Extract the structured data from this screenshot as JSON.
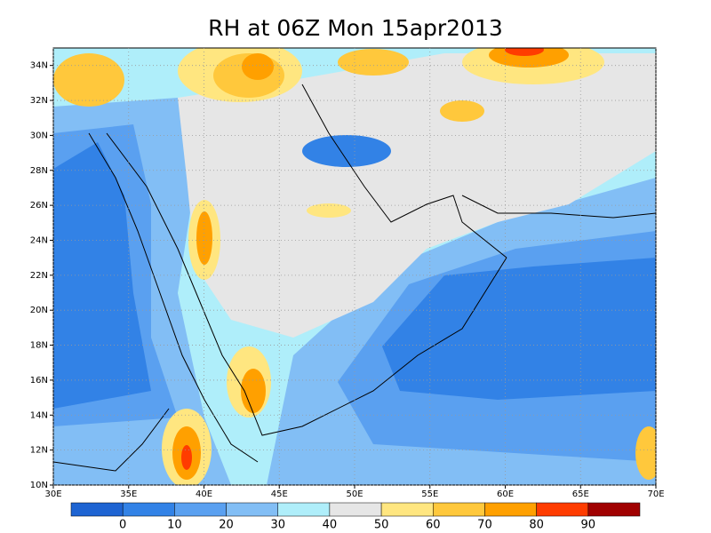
{
  "title": "RH at 06Z Mon 15apr2013",
  "map": {
    "xlim": [
      30,
      70
    ],
    "ylim": [
      10,
      35
    ],
    "xticks": [
      {
        "value": 30,
        "label": "30E"
      },
      {
        "value": 35,
        "label": "35E"
      },
      {
        "value": 40,
        "label": "40E"
      },
      {
        "value": 45,
        "label": "45E"
      },
      {
        "value": 50,
        "label": "50E"
      },
      {
        "value": 55,
        "label": "55E"
      },
      {
        "value": 60,
        "label": "60E"
      },
      {
        "value": 65,
        "label": "65E"
      },
      {
        "value": 70,
        "label": "70E"
      }
    ],
    "yticks": [
      {
        "value": 10,
        "label": "10N"
      },
      {
        "value": 12,
        "label": "12N"
      },
      {
        "value": 14,
        "label": "14N"
      },
      {
        "value": 16,
        "label": "16N"
      },
      {
        "value": 18,
        "label": "18N"
      },
      {
        "value": 20,
        "label": "20N"
      },
      {
        "value": 22,
        "label": "22N"
      },
      {
        "value": 24,
        "label": "24N"
      },
      {
        "value": 26,
        "label": "26N"
      },
      {
        "value": 28,
        "label": "28N"
      },
      {
        "value": 30,
        "label": "30N"
      },
      {
        "value": 32,
        "label": "32N"
      },
      {
        "value": 34,
        "label": "34N"
      }
    ],
    "grid": true
  },
  "colorbar": {
    "levels": [
      0,
      10,
      20,
      30,
      40,
      50,
      60,
      70,
      80,
      90
    ],
    "colors": [
      "#1e64d2",
      "#3282e6",
      "#5aa0f0",
      "#82bef5",
      "#afeefa",
      "#e6e6e6",
      "#ffe680",
      "#ffc83c",
      "#ffa000",
      "#ff3c00",
      "#a00000"
    ]
  }
}
